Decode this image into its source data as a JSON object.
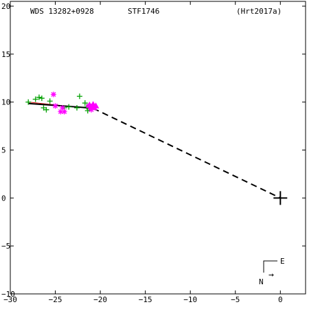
{
  "header": {
    "wds_id": "WDS 13282+0928",
    "discoverer": "STF1746",
    "reference": "(Hrt2017a)"
  },
  "compass": {
    "east_label": "E",
    "north_label": "N",
    "arrow_glyph": "→"
  },
  "chart_data": {
    "type": "scatter",
    "title": "",
    "xlabel": "",
    "ylabel": "",
    "xlim": [
      -30,
      2.8
    ],
    "ylim": [
      -10,
      20.5
    ],
    "x_ticks": [
      -30,
      -25,
      -20,
      -15,
      -10,
      -5,
      0
    ],
    "x_tick_labels": [
      "−30",
      "−25",
      "−20",
      "−15",
      "−10",
      "−5",
      "0"
    ],
    "y_ticks": [
      -10,
      -5,
      0,
      5,
      10,
      15,
      20
    ],
    "y_tick_labels": [
      "−10",
      "−5",
      "0",
      "5",
      "10",
      "15",
      "20"
    ],
    "colors": {
      "plus_series": "#00a000",
      "star_series": "#ff00ff",
      "triangle_series": "#ff00ff",
      "orbit_fit": "#000000",
      "orbit_alt": "#cc0000",
      "primary": "#000000"
    },
    "primary": {
      "x": 0,
      "y": 0
    },
    "orbit_fit": [
      [
        -28.0,
        9.85
      ],
      [
        -25.0,
        9.65
      ],
      [
        -22.0,
        9.45
      ],
      [
        -20.8,
        9.35
      ]
    ],
    "orbit_alt": [
      [
        -28.0,
        10.0
      ],
      [
        -25.0,
        9.7
      ],
      [
        -22.0,
        9.45
      ],
      [
        -20.8,
        9.3
      ]
    ],
    "periastron_line": [
      [
        -20.8,
        9.35
      ],
      [
        0,
        0
      ]
    ],
    "series": [
      {
        "marker": "plus",
        "points": [
          [
            -28.0,
            10.0
          ],
          [
            -27.2,
            10.3
          ],
          [
            -26.8,
            10.5
          ],
          [
            -26.5,
            10.4
          ],
          [
            -26.3,
            9.4
          ],
          [
            -26.0,
            9.2
          ],
          [
            -25.6,
            10.1
          ],
          [
            -24.0,
            9.4
          ],
          [
            -23.5,
            9.5
          ],
          [
            -22.6,
            9.4
          ],
          [
            -22.3,
            10.6
          ],
          [
            -21.7,
            9.9
          ],
          [
            -21.5,
            9.5
          ],
          [
            -21.4,
            9.1
          ],
          [
            -21.2,
            9.4
          ],
          [
            -20.5,
            9.4
          ]
        ]
      },
      {
        "marker": "star",
        "points": [
          [
            -25.2,
            10.8
          ],
          [
            -25.0,
            9.6
          ],
          [
            -24.4,
            9.0
          ],
          [
            -24.2,
            9.4
          ],
          [
            -24.0,
            9.0
          ],
          [
            -21.3,
            9.6
          ],
          [
            -21.0,
            9.2
          ]
        ]
      },
      {
        "marker": "triangle",
        "points": [
          [
            -21.2,
            9.7
          ],
          [
            -21.0,
            9.5
          ],
          [
            -20.8,
            9.75
          ],
          [
            -20.7,
            9.4
          ],
          [
            -20.5,
            9.6
          ]
        ]
      }
    ]
  }
}
